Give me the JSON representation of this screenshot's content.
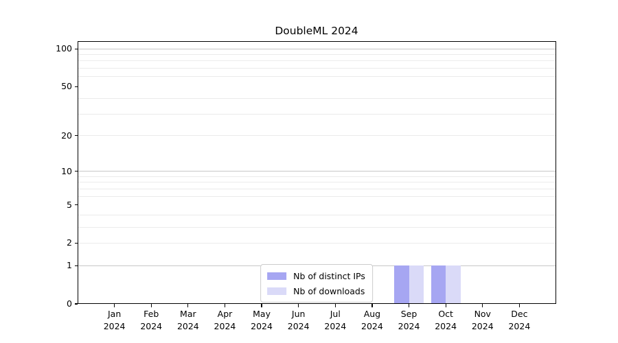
{
  "figure": {
    "background": "#ffffff",
    "axis_color": "#000000"
  },
  "chart_data": {
    "type": "bar",
    "title": "DoubleML 2024",
    "categories": [
      [
        "Jan",
        "2024"
      ],
      [
        "Feb",
        "2024"
      ],
      [
        "Mar",
        "2024"
      ],
      [
        "Apr",
        "2024"
      ],
      [
        "May",
        "2024"
      ],
      [
        "Jun",
        "2024"
      ],
      [
        "Jul",
        "2024"
      ],
      [
        "Aug",
        "2024"
      ],
      [
        "Sep",
        "2024"
      ],
      [
        "Oct",
        "2024"
      ],
      [
        "Nov",
        "2024"
      ],
      [
        "Dec",
        "2024"
      ]
    ],
    "series": [
      {
        "name": "Nb of distinct IPs",
        "color": "#a6a6f2",
        "values": [
          0,
          0,
          0,
          0,
          0,
          0,
          0,
          0,
          1,
          1,
          0,
          0
        ]
      },
      {
        "name": "Nb of downloads",
        "color": "#dadaf8",
        "values": [
          0,
          0,
          0,
          0,
          0,
          0,
          0,
          0,
          1,
          1,
          0,
          0
        ]
      }
    ],
    "xlabel": "",
    "ylabel": "",
    "y_axis": {
      "tick_values": [
        0,
        1,
        2,
        5,
        10,
        20,
        50,
        100
      ],
      "scale": "log10(1+x)",
      "ylim": [
        0,
        115
      ]
    },
    "grid": {
      "major_values": [
        1,
        10,
        100
      ],
      "major_color": "#c6c6c6",
      "minor_values": [
        2,
        3,
        4,
        6,
        7,
        8,
        9,
        20,
        30,
        40,
        60,
        70,
        80,
        90
      ],
      "minor_color": "#ebebeb"
    },
    "legend": {
      "position": "lower center",
      "border_color": "#cccccc"
    }
  }
}
